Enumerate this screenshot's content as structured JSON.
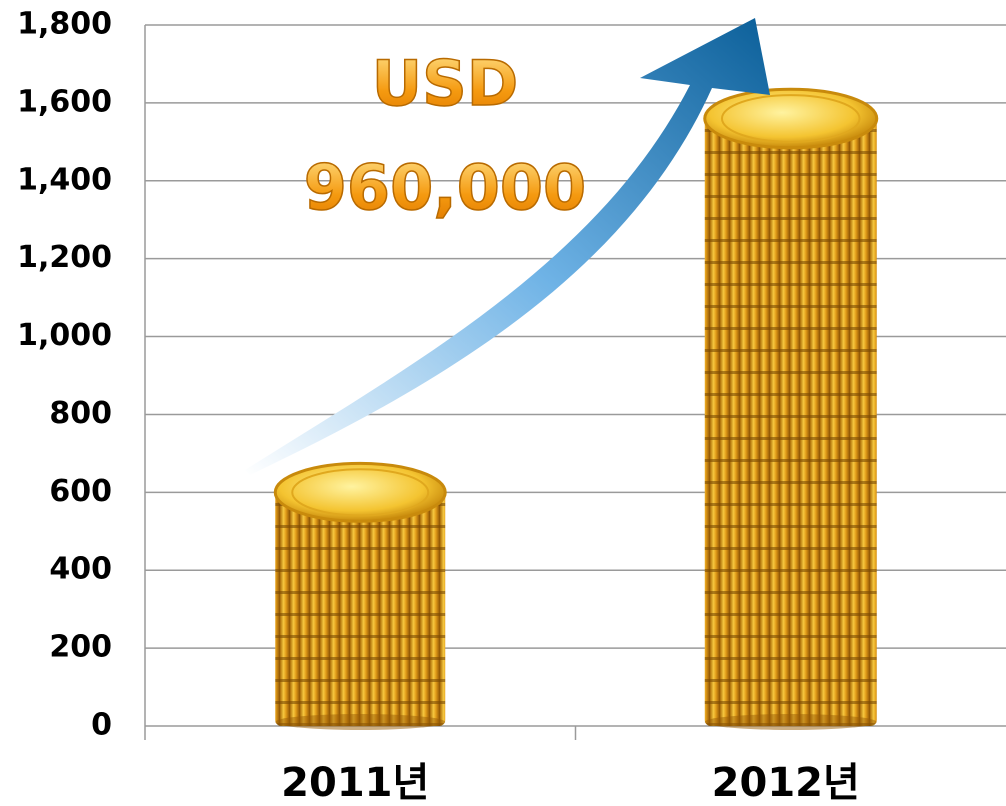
{
  "chart_data": {
    "type": "bar",
    "categories": [
      "2011년",
      "2012년"
    ],
    "values": [
      600,
      1560
    ],
    "color": "#e8a419",
    "annotations": [
      "USD",
      "960,000"
    ],
    "ylim": [
      0,
      1800
    ],
    "yticks": [
      0,
      200,
      400,
      600,
      800,
      {
        "value": 1000,
        "label": "1,000"
      },
      {
        "value": 1200,
        "label": "1,200"
      },
      {
        "value": 1400,
        "label": "1,400"
      },
      {
        "value": 1600,
        "label": "1,600"
      },
      {
        "value": 1800,
        "label": "1,800"
      }
    ],
    "grid": true
  }
}
